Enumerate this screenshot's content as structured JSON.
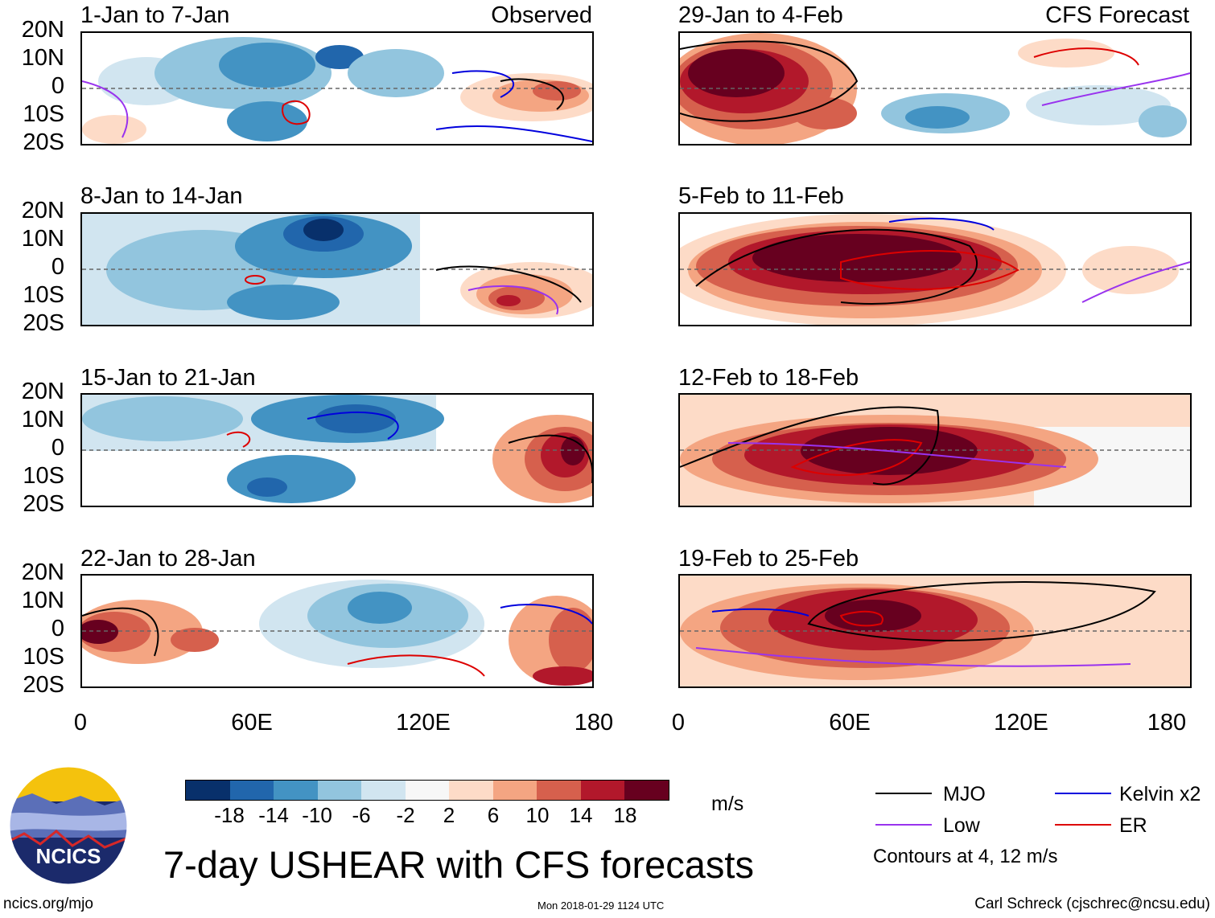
{
  "sources": {
    "left": "Observed",
    "right": "CFS Forecast"
  },
  "lat_labels": [
    "20N",
    "10N",
    "0",
    "10S",
    "20S"
  ],
  "lon_labels": [
    "0",
    "60E",
    "120E",
    "180"
  ],
  "panels_left": [
    {
      "title": "1-Jan to 7-Jan"
    },
    {
      "title": "8-Jan to 14-Jan"
    },
    {
      "title": "15-Jan to 21-Jan"
    },
    {
      "title": "22-Jan to 28-Jan"
    }
  ],
  "panels_right": [
    {
      "title": "29-Jan to 4-Feb"
    },
    {
      "title": "5-Feb to 11-Feb"
    },
    {
      "title": "12-Feb to 18-Feb"
    },
    {
      "title": "19-Feb to 25-Feb"
    }
  ],
  "colorbar": {
    "labels": [
      "-18",
      "-14",
      "-10",
      "-6",
      "-2",
      "2",
      "6",
      "10",
      "14",
      "18"
    ],
    "colors": [
      "#08306b",
      "#2166ac",
      "#4393c3",
      "#92c5de",
      "#d1e5f0",
      "#f7f7f7",
      "#fddbc7",
      "#f4a582",
      "#d6604d",
      "#b2182b",
      "#67001f"
    ],
    "units": "m/s"
  },
  "legend": {
    "items": [
      {
        "label": "MJO",
        "color": "#000000"
      },
      {
        "label": "Kelvin x2",
        "color": "#0000dd"
      },
      {
        "label": "Low",
        "color": "#9933ee"
      },
      {
        "label": "ER",
        "color": "#dd0000"
      }
    ],
    "note": "Contours at 4, 12 m/s"
  },
  "logo": {
    "text": "NCICS"
  },
  "title": "7-day USHEAR with CFS forecasts",
  "footer": {
    "left": "ncics.org/mjo",
    "center": "Mon 2018-01-29 1124 UTC",
    "right": "Carl Schreck (cjschrec@ncsu.edu)"
  }
}
